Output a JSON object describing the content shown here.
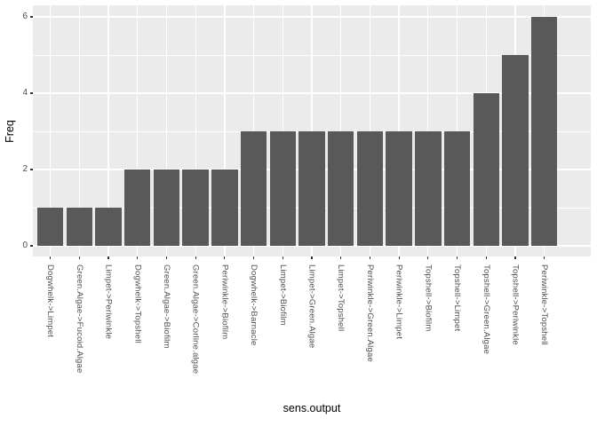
{
  "figure": {
    "background_color": "#FFFFFF",
    "panel_background_color": "#EBEBEB",
    "bar_color": "#595959",
    "gridline_color": "#FFFFFF",
    "axis_text_color": "#4D4D4D",
    "axis_title_color": "#000000",
    "tick_mark_color": "#333333"
  },
  "chart_data": {
    "type": "bar",
    "title": "",
    "xlabel": "sens.output",
    "ylabel": "Freq",
    "categories": [
      "Dogwhelk->Limpet",
      "Green.Algae->Fucoid.Algae",
      "Limpet->Periwinkle",
      "Dogwhelk->Topshell",
      "Green.Algae->Biofilm",
      "Green.Algae->Corline.algae",
      "Periwinkle->Biofilm",
      "Dogwhelk->Barnacle",
      "Limpet->Biofilm",
      "Limpet->Green.Algae",
      "Limpet->Topshell",
      "Periwinkle->Green.Algae",
      "Periwinkle->Limpet",
      "Topshell->Biofilm",
      "Topshell->Limpet",
      "Topshell->Green.Algae",
      "Topshell->Periwinkle",
      "Periwinkle->Topshell"
    ],
    "values": [
      1,
      1,
      1,
      2,
      2,
      2,
      2,
      3,
      3,
      3,
      3,
      3,
      3,
      3,
      3,
      4,
      5,
      6
    ],
    "y_major_ticks": [
      0,
      2,
      4,
      6
    ],
    "y_minor_gridlines": [
      1,
      3,
      5
    ],
    "ylim": [
      -0.3,
      6.3
    ],
    "grid": "major-and-minor-white",
    "legend_position": "none",
    "bar_width_fraction": 0.9,
    "x_label_rotation_degrees": -90
  }
}
